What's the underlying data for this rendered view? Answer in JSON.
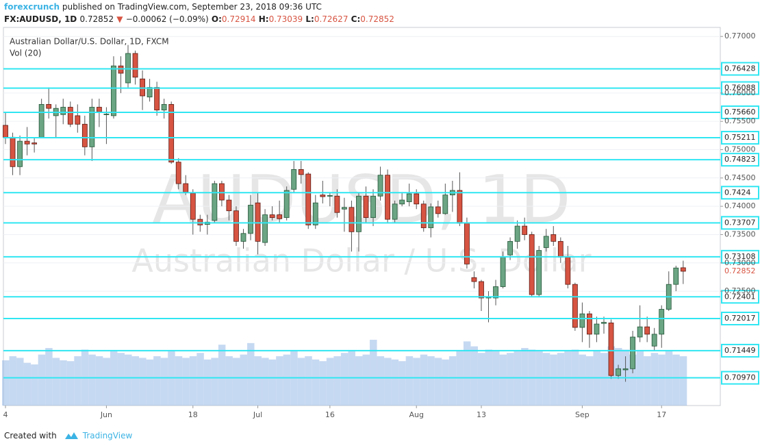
{
  "header": {
    "author": "forexcrunch",
    "published": "published on TradingView.com, September 23, 2018 09:36 UTC",
    "symbol": "FX:AUDUSD, 1D",
    "change": "−0.00062 (−0.09%)",
    "ohlc_labels": [
      "O:",
      "H:",
      "L:",
      "C:"
    ]
  },
  "footer": {
    "created": "Created with",
    "brand": "TradingView"
  },
  "chart_data": {
    "type": "candlestick",
    "title": "Australian Dollar/U.S. Dollar, 1D, FXCM",
    "watermark": [
      "AUDUSD, 1D",
      "Australian Dollar / U.S. Dollar"
    ],
    "up_color": "#6ba583",
    "down_color": "#d75442",
    "categories": [
      "4",
      null,
      null,
      null,
      null,
      null,
      null,
      null,
      null,
      null,
      null,
      null,
      null,
      null,
      "Jun",
      null,
      null,
      null,
      null,
      null,
      null,
      null,
      null,
      null,
      null,
      null,
      "18",
      null,
      null,
      null,
      null,
      null,
      null,
      null,
      null,
      "Jul",
      null,
      null,
      null,
      null,
      null,
      null,
      null,
      null,
      null,
      "16",
      null,
      null,
      null,
      null,
      null,
      null,
      null,
      null,
      null,
      null,
      null,
      "Aug",
      null,
      null,
      null,
      null,
      null,
      null,
      null,
      null,
      "13",
      null,
      null,
      null,
      null,
      null,
      null,
      null,
      null,
      null,
      null,
      null,
      null,
      null,
      "Sep",
      null,
      null,
      null,
      null,
      null,
      null,
      null,
      null,
      null,
      null,
      "17",
      null,
      null,
      null
    ],
    "open": [
      0.7543,
      0.7522,
      0.747,
      0.7515,
      0.7512,
      0.7522,
      0.758,
      0.756,
      0.7562,
      0.7575,
      0.756,
      0.7545,
      0.7505,
      0.7575,
      0.7563,
      0.756,
      0.7648,
      0.7618,
      0.767,
      0.7625,
      0.7593,
      0.761,
      0.757,
      0.758,
      0.7478,
      0.744,
      0.7423,
      0.7377,
      0.7368,
      0.7375,
      0.744,
      0.7411,
      0.7392,
      0.7338,
      0.7352,
      0.7406,
      0.7336,
      0.7385,
      0.7385,
      0.738,
      0.743,
      0.7465,
      0.7457,
      0.7367,
      0.742,
      0.7419,
      0.7418,
      0.7395,
      0.7398,
      0.7355,
      0.7418,
      0.738,
      0.7418,
      0.7455,
      0.7377,
      0.7404,
      0.7408,
      0.7422,
      0.7404,
      0.7362,
      0.7399,
      0.7387,
      0.742,
      0.7428,
      0.737,
      0.7274,
      0.7267,
      0.7238,
      0.7238,
      0.7258,
      0.7314,
      0.7338,
      0.7365,
      0.735,
      0.7244,
      0.7327,
      0.735,
      0.7338,
      0.731,
      0.7262,
      0.7186,
      0.721,
      0.7174,
      0.7193,
      0.7194,
      0.7101,
      0.7111,
      0.7113,
      0.7169,
      0.7187,
      0.7153,
      0.7174,
      0.7218,
      0.7262,
      0.72914
    ],
    "high": [
      0.7565,
      0.753,
      0.7525,
      0.754,
      0.752,
      0.759,
      0.761,
      0.758,
      0.759,
      0.7585,
      0.758,
      0.756,
      0.759,
      0.759,
      0.7575,
      0.7665,
      0.7665,
      0.7685,
      0.7675,
      0.764,
      0.7625,
      0.762,
      0.759,
      0.7585,
      0.7485,
      0.7455,
      0.743,
      0.7385,
      0.7385,
      0.7445,
      0.7445,
      0.742,
      0.74,
      0.736,
      0.742,
      0.7425,
      0.7395,
      0.74,
      0.741,
      0.7435,
      0.748,
      0.748,
      0.746,
      0.742,
      0.7445,
      0.7425,
      0.743,
      0.7415,
      0.741,
      0.7425,
      0.7435,
      0.743,
      0.747,
      0.7465,
      0.741,
      0.7425,
      0.744,
      0.743,
      0.741,
      0.7405,
      0.741,
      0.744,
      0.7445,
      0.746,
      0.738,
      0.7285,
      0.727,
      0.725,
      0.727,
      0.732,
      0.7345,
      0.7375,
      0.738,
      0.7355,
      0.733,
      0.736,
      0.7365,
      0.7345,
      0.733,
      0.7265,
      0.723,
      0.7215,
      0.7205,
      0.7205,
      0.72,
      0.712,
      0.7135,
      0.718,
      0.7225,
      0.7205,
      0.7185,
      0.7225,
      0.7285,
      0.7295,
      0.73039
    ],
    "low": [
      0.751,
      0.7455,
      0.7455,
      0.749,
      0.7495,
      0.752,
      0.7555,
      0.752,
      0.7545,
      0.754,
      0.753,
      0.749,
      0.748,
      0.754,
      0.751,
      0.7555,
      0.76,
      0.761,
      0.7615,
      0.757,
      0.7585,
      0.756,
      0.7555,
      0.7475,
      0.743,
      0.742,
      0.735,
      0.7355,
      0.735,
      0.737,
      0.74,
      0.7375,
      0.733,
      0.7325,
      0.734,
      0.7315,
      0.733,
      0.7375,
      0.737,
      0.7375,
      0.7425,
      0.744,
      0.736,
      0.736,
      0.7405,
      0.74,
      0.738,
      0.7355,
      0.732,
      0.732,
      0.737,
      0.7365,
      0.741,
      0.737,
      0.737,
      0.74,
      0.74,
      0.7395,
      0.7355,
      0.7345,
      0.738,
      0.7385,
      0.739,
      0.7365,
      0.729,
      0.7255,
      0.7215,
      0.7195,
      0.7225,
      0.7255,
      0.7305,
      0.7325,
      0.734,
      0.724,
      0.724,
      0.732,
      0.733,
      0.73,
      0.7255,
      0.718,
      0.716,
      0.715,
      0.716,
      0.7175,
      0.7095,
      0.7095,
      0.709,
      0.7105,
      0.716,
      0.716,
      0.7145,
      0.715,
      0.7215,
      0.725,
      0.72627
    ],
    "close": [
      0.7522,
      0.747,
      0.7515,
      0.751,
      0.751,
      0.758,
      0.7573,
      0.7573,
      0.7575,
      0.7545,
      0.7545,
      0.7505,
      0.7575,
      0.7567,
      0.7563,
      0.7648,
      0.7635,
      0.767,
      0.7628,
      0.7595,
      0.761,
      0.757,
      0.758,
      0.7478,
      0.744,
      0.7425,
      0.7377,
      0.7367,
      0.7372,
      0.744,
      0.7411,
      0.7392,
      0.7338,
      0.7352,
      0.7402,
      0.7338,
      0.7385,
      0.738,
      0.7378,
      0.7428,
      0.7465,
      0.7456,
      0.7367,
      0.7406,
      0.7417,
      0.7419,
      0.7389,
      0.7398,
      0.7355,
      0.7418,
      0.738,
      0.7418,
      0.7455,
      0.7377,
      0.7404,
      0.7411,
      0.7422,
      0.7404,
      0.7362,
      0.7399,
      0.7387,
      0.742,
      0.7428,
      0.737,
      0.7298,
      0.7267,
      0.7238,
      0.724,
      0.7258,
      0.731,
      0.7338,
      0.7365,
      0.735,
      0.7244,
      0.7322,
      0.7347,
      0.7338,
      0.731,
      0.7262,
      0.7186,
      0.721,
      0.7174,
      0.7192,
      0.7195,
      0.7101,
      0.7113,
      0.7113,
      0.7169,
      0.7187,
      0.7174,
      0.7174,
      0.7218,
      0.7262,
      0.7291,
      0.72852
    ],
    "volume": {
      "name": "Vol (20)",
      "color": "#8db4e6",
      "values": [
        55,
        60,
        58,
        52,
        50,
        62,
        70,
        58,
        55,
        54,
        60,
        68,
        62,
        60,
        58,
        66,
        64,
        62,
        60,
        58,
        56,
        60,
        58,
        66,
        60,
        58,
        60,
        64,
        56,
        58,
        74,
        60,
        58,
        62,
        76,
        60,
        58,
        56,
        60,
        62,
        66,
        58,
        60,
        56,
        54,
        58,
        60,
        64,
        66,
        60,
        62,
        80,
        60,
        58,
        56,
        54,
        60,
        58,
        62,
        60,
        58,
        56,
        60,
        66,
        78,
        72,
        64,
        68,
        66,
        62,
        64,
        66,
        70,
        68,
        66,
        64,
        62,
        64,
        66,
        68,
        62,
        60,
        66,
        64,
        72,
        70,
        68,
        62,
        66,
        60,
        64,
        62,
        66,
        62,
        60
      ]
    },
    "ylim": [
      0.7048,
      0.7716
    ],
    "yticks": [
      {
        "value": 0.77,
        "label": "0.77000"
      },
      {
        "value": 0.76,
        "label": "0.76000"
      },
      {
        "value": 0.755,
        "label": "0.75500"
      },
      {
        "value": 0.75,
        "label": "0.75000"
      },
      {
        "value": 0.745,
        "label": "0.74500"
      },
      {
        "value": 0.74,
        "label": "0.74000"
      },
      {
        "value": 0.735,
        "label": "0.73500"
      },
      {
        "value": 0.73,
        "label": "0.73000"
      },
      {
        "value": 0.725,
        "label": "0.72500"
      }
    ],
    "levels": [
      0.76428,
      0.76088,
      {
        "value": 0.7566,
        "label": "0.75660"
      },
      0.75211,
      0.74823,
      0.7424,
      0.73707,
      0.73108,
      0.72401,
      0.72017,
      0.71449,
      {
        "value": 0.7097,
        "label": "0.70970"
      }
    ],
    "level_color": "#2fe6f2",
    "grid": true
  }
}
